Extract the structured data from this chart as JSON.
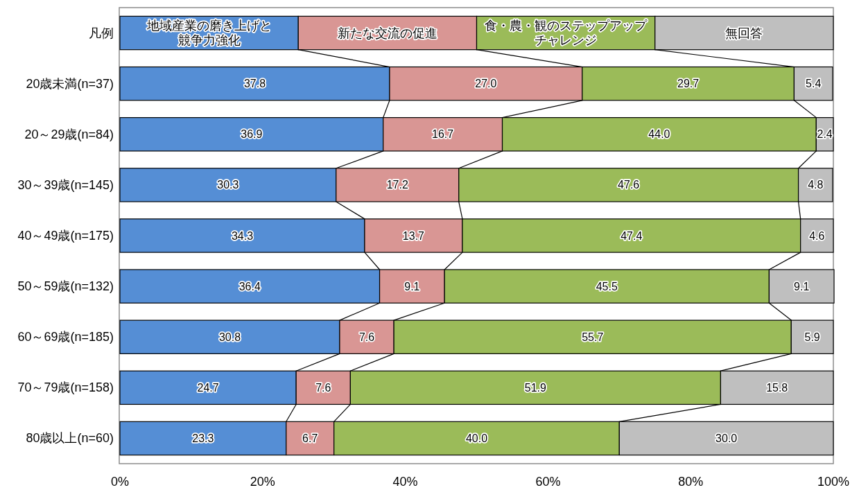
{
  "chart_data": {
    "type": "bar",
    "orientation": "horizontal",
    "stacked": true,
    "categories": [
      "20歳未満(n=37)",
      "20～29歳(n=84)",
      "30～39歳(n=145)",
      "40～49歳(n=175)",
      "50～59歳(n=132)",
      "60～69歳(n=185)",
      "70～79歳(n=158)",
      "80歳以上(n=60)"
    ],
    "series": [
      {
        "name": "地域産業の磨き上げと競争力強化",
        "color": "#558ed5",
        "values": [
          37.8,
          36.9,
          30.3,
          34.3,
          36.4,
          30.8,
          24.7,
          23.3
        ],
        "value_labels": [
          "37.8",
          "36.9",
          "30.3",
          "34.3",
          "36.4",
          "30.8",
          "24.7",
          "23.3"
        ]
      },
      {
        "name": "新たな交流の促進",
        "color": "#d99694",
        "values": [
          27.0,
          16.7,
          17.2,
          13.7,
          9.1,
          7.6,
          7.6,
          6.7
        ],
        "value_labels": [
          "27.0",
          "16.7",
          "17.2",
          "13.7",
          "9.1",
          "7.6",
          "7.6",
          "6.7"
        ]
      },
      {
        "name": "食・農・観のステップアップチャレンジ",
        "color": "#9bbb59",
        "values": [
          29.7,
          44.0,
          47.6,
          47.4,
          45.5,
          55.7,
          51.9,
          40.0
        ],
        "value_labels": [
          "29.7",
          "44.0",
          "47.6",
          "47.4",
          "45.5",
          "55.7",
          "51.9",
          "40.0"
        ]
      },
      {
        "name": "無回答",
        "color": "#bfbfbf",
        "values": [
          5.4,
          2.4,
          4.8,
          4.6,
          9.1,
          5.9,
          15.8,
          30.0
        ],
        "value_labels": [
          "5.4",
          "2.4",
          "4.8",
          "4.6",
          "9.1",
          "5.9",
          "15.8",
          "30.0"
        ]
      }
    ],
    "xlim": [
      0,
      100
    ],
    "xticks": [
      {
        "value": 0,
        "label": "0%"
      },
      {
        "value": 20,
        "label": "20%"
      },
      {
        "value": 40,
        "label": "40%"
      },
      {
        "value": 60,
        "label": "60%"
      },
      {
        "value": 80,
        "label": "80%"
      },
      {
        "value": 100,
        "label": "100%"
      }
    ],
    "legend": "top",
    "legend_title": "凡例"
  }
}
